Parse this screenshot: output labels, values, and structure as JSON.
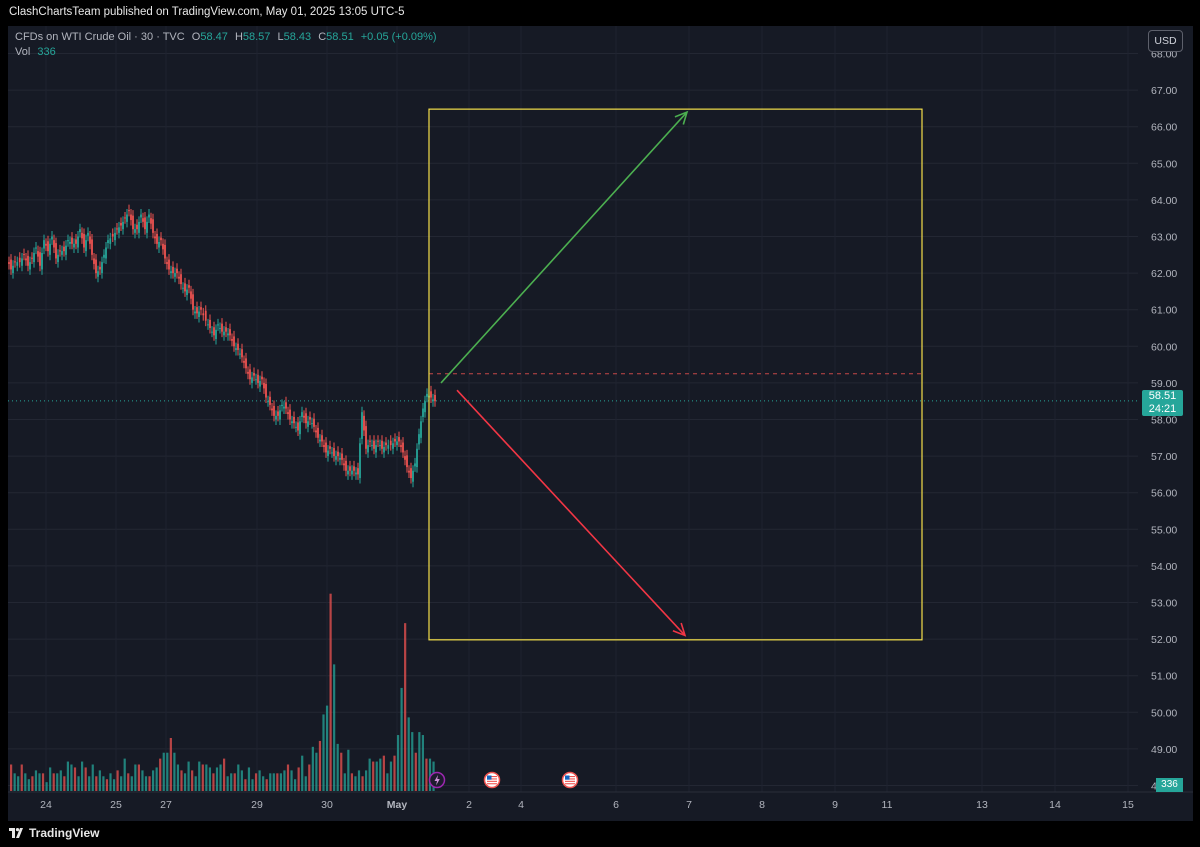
{
  "header": {
    "publisher_line": "ClashChartsTeam published on TradingView.com, May 01, 2025 13:05 UTC-5"
  },
  "legend": {
    "symbol": "CFDs on WTI Crude Oil · 30 · TVC",
    "o_label": "O",
    "o_value": "58.47",
    "h_label": "H",
    "h_value": "58.57",
    "l_label": "L",
    "l_value": "58.43",
    "c_label": "C",
    "c_value": "58.51",
    "change": "+0.05 (+0.09%)",
    "vol_label": "Vol",
    "vol_value": "336"
  },
  "currency_button": "USD",
  "price_tag": {
    "price": "58.51",
    "countdown": "24:21"
  },
  "volume_tag": "336",
  "footer": {
    "brand": "TradingView"
  },
  "colors": {
    "up": "#26a69a",
    "down": "#ef5350",
    "box": "#f5e04a",
    "arrow_up": "#4caf50",
    "arrow_down": "#f23645",
    "background": "#161a25",
    "event_icon": "#9c27b0"
  },
  "chart_data": {
    "type": "candlestick",
    "interval": "30",
    "y_axis": {
      "ticks": [
        "48.00",
        "49.00",
        "50.00",
        "51.00",
        "52.00",
        "53.00",
        "54.00",
        "55.00",
        "56.00",
        "57.00",
        "58.00",
        "59.00",
        "60.00",
        "61.00",
        "62.00",
        "63.00",
        "64.00",
        "65.00",
        "66.00",
        "67.00",
        "68.00"
      ],
      "range": [
        47.8,
        68.1
      ]
    },
    "x_axis": {
      "ticks": [
        "24",
        "25",
        "27",
        "29",
        "30",
        "May",
        "2",
        "4",
        "6",
        "7",
        "8",
        "9",
        "11",
        "13",
        "14",
        "15"
      ]
    },
    "price_path": [
      [
        0,
        62.4
      ],
      [
        4,
        62.1
      ],
      [
        8,
        62.3
      ],
      [
        13,
        62.3
      ],
      [
        17,
        62.5
      ],
      [
        21,
        62.2
      ],
      [
        25,
        62.4
      ],
      [
        29,
        62.7
      ],
      [
        33,
        62.2
      ],
      [
        37,
        62.9
      ],
      [
        41,
        62.6
      ],
      [
        45,
        63.0
      ],
      [
        49,
        62.4
      ],
      [
        53,
        62.6
      ],
      [
        57,
        62.6
      ],
      [
        61,
        62.9
      ],
      [
        65,
        62.8
      ],
      [
        69,
        62.8
      ],
      [
        73,
        63.2
      ],
      [
        77,
        62.7
      ],
      [
        81,
        63.1
      ],
      [
        85,
        62.5
      ],
      [
        89,
        62.0
      ],
      [
        93,
        62.1
      ],
      [
        97,
        62.5
      ],
      [
        101,
        62.9
      ],
      [
        106,
        63.0
      ],
      [
        110,
        63.2
      ],
      [
        114,
        63.3
      ],
      [
        118,
        63.5
      ],
      [
        122,
        63.7
      ],
      [
        126,
        63.2
      ],
      [
        130,
        63.2
      ],
      [
        134,
        63.6
      ],
      [
        138,
        63.2
      ],
      [
        142,
        63.6
      ],
      [
        146,
        63.1
      ],
      [
        150,
        62.8
      ],
      [
        154,
        62.9
      ],
      [
        158,
        62.4
      ],
      [
        162,
        62.1
      ],
      [
        166,
        62.0
      ],
      [
        170,
        62.0
      ],
      [
        174,
        61.7
      ],
      [
        178,
        61.5
      ],
      [
        182,
        61.6
      ],
      [
        186,
        61.0
      ],
      [
        190,
        60.9
      ],
      [
        194,
        61.0
      ],
      [
        199,
        60.7
      ],
      [
        203,
        60.5
      ],
      [
        207,
        60.3
      ],
      [
        211,
        60.6
      ],
      [
        215,
        60.4
      ],
      [
        219,
        60.4
      ],
      [
        223,
        60.3
      ],
      [
        227,
        60.0
      ],
      [
        231,
        59.9
      ],
      [
        235,
        59.7
      ],
      [
        239,
        59.4
      ],
      [
        243,
        59.1
      ],
      [
        247,
        59.2
      ],
      [
        251,
        59.0
      ],
      [
        255,
        59.1
      ],
      [
        259,
        58.6
      ],
      [
        263,
        58.4
      ],
      [
        267,
        58.1
      ],
      [
        271,
        58.1
      ],
      [
        275,
        58.4
      ],
      [
        279,
        58.3
      ],
      [
        283,
        58.0
      ],
      [
        287,
        57.9
      ],
      [
        291,
        57.7
      ],
      [
        295,
        58.2
      ],
      [
        299,
        57.9
      ],
      [
        303,
        58.0
      ],
      [
        307,
        57.8
      ],
      [
        311,
        57.5
      ],
      [
        315,
        57.4
      ],
      [
        319,
        57.1
      ],
      [
        323,
        57.2
      ],
      [
        327,
        57.0
      ],
      [
        331,
        57.0
      ],
      [
        335,
        56.9
      ],
      [
        339,
        56.6
      ],
      [
        343,
        56.6
      ],
      [
        347,
        56.6
      ],
      [
        351,
        56.5
      ],
      [
        355,
        58.2
      ],
      [
        359,
        57.2
      ],
      [
        363,
        57.4
      ],
      [
        367,
        57.2
      ],
      [
        371,
        57.4
      ],
      [
        375,
        57.2
      ],
      [
        379,
        57.3
      ],
      [
        384,
        57.3
      ],
      [
        388,
        57.4
      ],
      [
        392,
        57.4
      ],
      [
        396,
        57.1
      ],
      [
        400,
        56.7
      ],
      [
        404,
        56.4
      ],
      [
        408,
        56.8
      ],
      [
        412,
        57.6
      ],
      [
        416,
        58.3
      ],
      [
        420,
        58.7
      ],
      [
        424,
        58.6
      ],
      [
        428,
        58.5
      ]
    ],
    "volume": [
      0.09,
      0.06,
      0.05,
      0.09,
      0.06,
      0.04,
      0.05,
      0.07,
      0.06,
      0.06,
      0.03,
      0.08,
      0.06,
      0.06,
      0.07,
      0.05,
      0.1,
      0.09,
      0.08,
      0.05,
      0.1,
      0.08,
      0.05,
      0.09,
      0.05,
      0.07,
      0.05,
      0.04,
      0.06,
      0.04,
      0.07,
      0.05,
      0.11,
      0.06,
      0.05,
      0.09,
      0.09,
      0.07,
      0.05,
      0.05,
      0.07,
      0.08,
      0.11,
      0.13,
      0.13,
      0.18,
      0.13,
      0.09,
      0.07,
      0.06,
      0.1,
      0.07,
      0.05,
      0.1,
      0.09,
      0.09,
      0.08,
      0.06,
      0.08,
      0.09,
      0.11,
      0.05,
      0.06,
      0.06,
      0.09,
      0.07,
      0.04,
      0.08,
      0.04,
      0.06,
      0.07,
      0.05,
      0.04,
      0.06,
      0.06,
      0.06,
      0.06,
      0.07,
      0.09,
      0.07,
      0.04,
      0.08,
      0.12,
      0.05,
      0.09,
      0.15,
      0.13,
      0.17,
      0.26,
      0.29,
      0.67,
      0.43,
      0.16,
      0.13,
      0.06,
      0.14,
      0.06,
      0.05,
      0.07,
      0.05,
      0.07,
      0.11,
      0.1,
      0.1,
      0.11,
      0.12,
      0.06,
      0.1,
      0.12,
      0.19,
      0.35,
      0.57,
      0.25,
      0.2,
      0.13,
      0.2,
      0.19,
      0.11,
      0.11,
      0.1
    ],
    "current_price": 58.51,
    "reference_level": 59.25,
    "annotations": [
      {
        "type": "rectangle",
        "x_range": [
          "May",
          "11"
        ],
        "y_range": [
          51.98,
          66.48
        ]
      },
      {
        "type": "arrow",
        "direction": "up",
        "from": [
          59.0
        ],
        "to": [
          66.4
        ]
      },
      {
        "type": "arrow",
        "direction": "down",
        "from": [
          58.8
        ],
        "to": [
          52.1
        ]
      }
    ]
  }
}
